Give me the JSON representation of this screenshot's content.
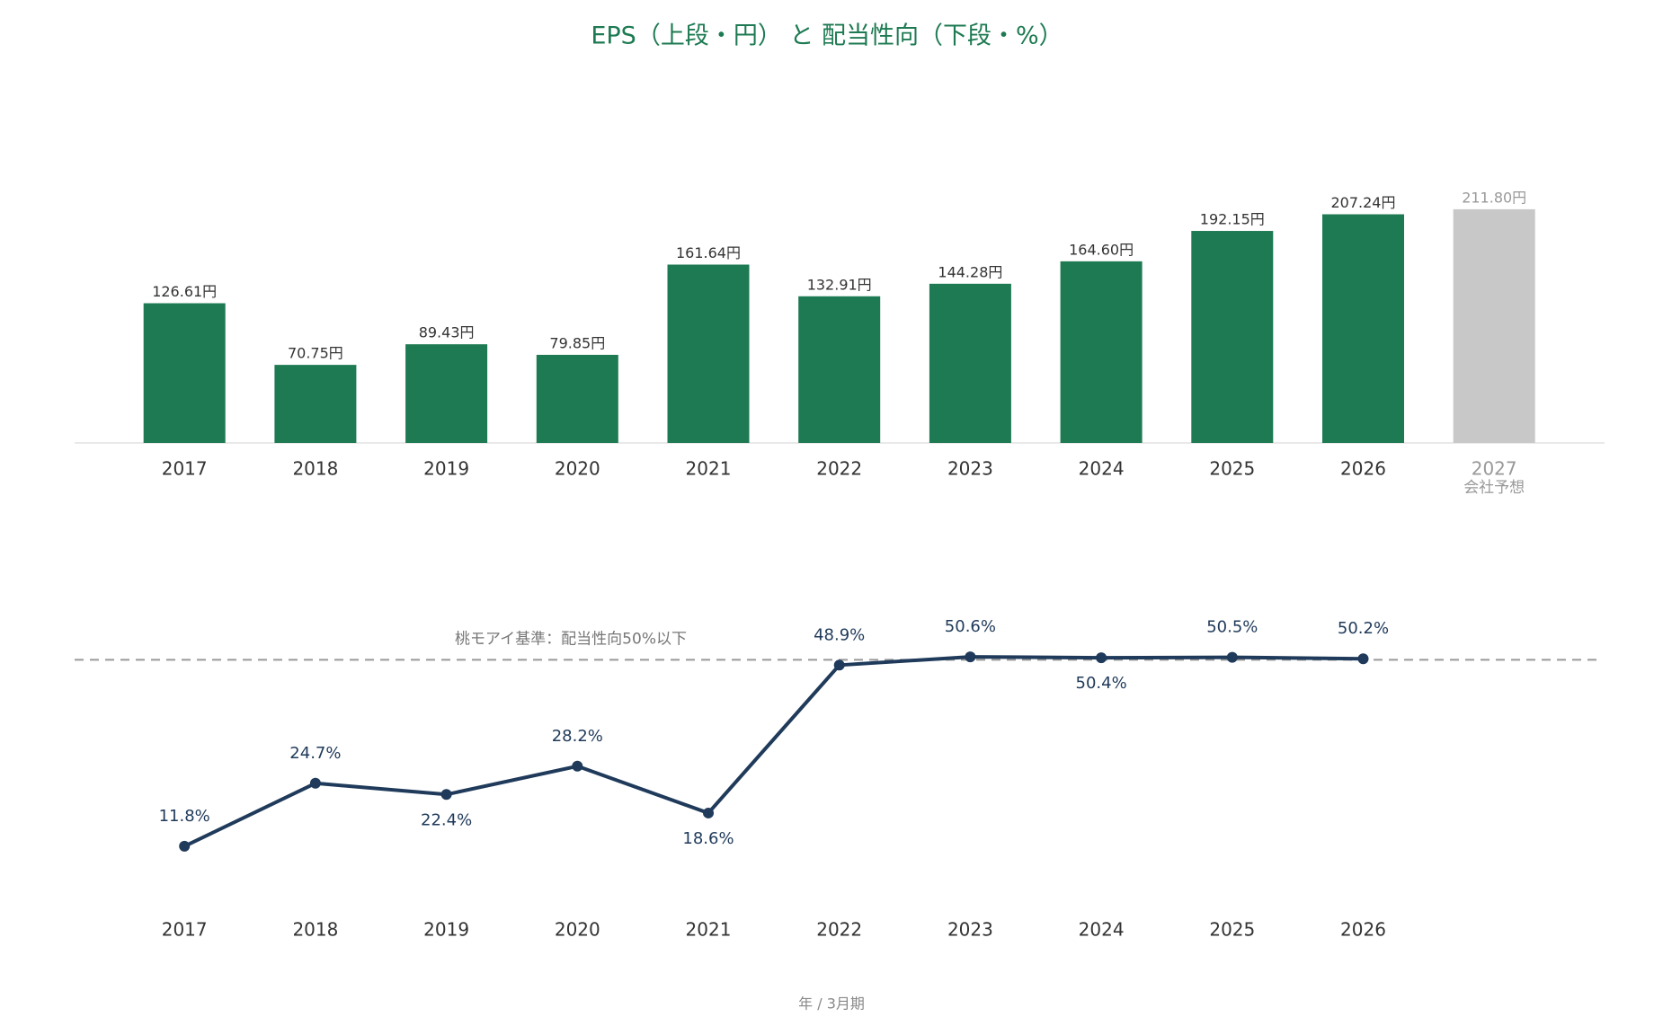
{
  "title": "EPS（上段・円） と 配当性向（下段・%）",
  "chart_data": [
    {
      "type": "bar",
      "categories": [
        "2017",
        "2018",
        "2019",
        "2020",
        "2021",
        "2022",
        "2023",
        "2024",
        "2025",
        "2026",
        "2027"
      ],
      "values": [
        126.61,
        70.75,
        89.43,
        79.85,
        161.64,
        132.91,
        144.28,
        164.6,
        192.15,
        207.24,
        211.8
      ],
      "value_labels": [
        "126.61円",
        "70.75円",
        "89.43円",
        "79.85円",
        "161.64円",
        "132.91円",
        "144.28円",
        "164.60円",
        "192.15円",
        "207.24円",
        "211.80円"
      ],
      "colors": [
        "#1d7a52",
        "#1d7a52",
        "#1d7a52",
        "#1d7a52",
        "#1d7a52",
        "#1d7a52",
        "#1d7a52",
        "#1d7a52",
        "#1d7a52",
        "#1d7a52",
        "#c8c8c8"
      ],
      "forecast_label": "会社予想",
      "ylim": [
        0,
        250
      ]
    },
    {
      "type": "line",
      "categories": [
        "2017",
        "2018",
        "2019",
        "2020",
        "2021",
        "2022",
        "2023",
        "2024",
        "2025",
        "2026"
      ],
      "values": [
        11.8,
        24.7,
        22.4,
        28.2,
        18.6,
        48.9,
        50.6,
        50.4,
        50.5,
        50.2
      ],
      "value_labels": [
        "11.8%",
        "24.7%",
        "22.4%",
        "28.2%",
        "18.6%",
        "48.9%",
        "50.6%",
        "50.4%",
        "50.5%",
        "50.2%"
      ],
      "color": "#1f3a5a",
      "reference": {
        "value": 50,
        "label": "桃モアイ基準：配当性向50%以下"
      },
      "xlabel": "年 / 3月期",
      "ylim": [
        0,
        60
      ]
    }
  ]
}
